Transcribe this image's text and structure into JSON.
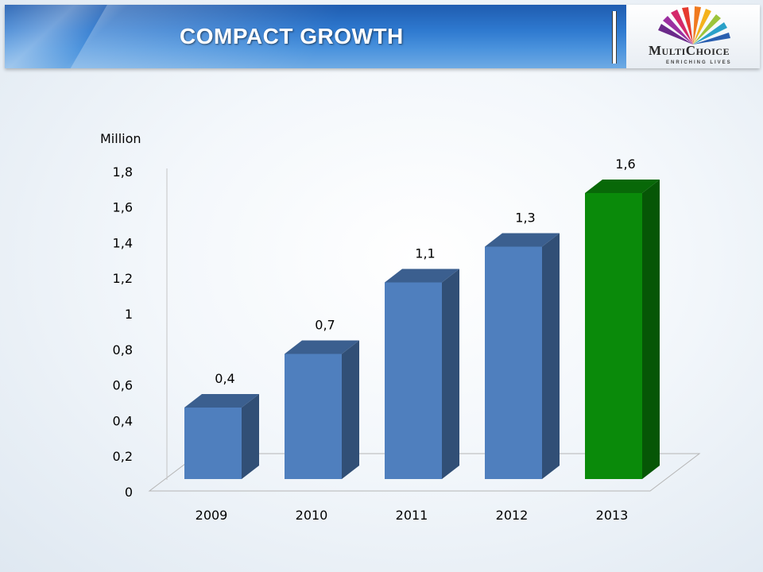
{
  "header": {
    "title": "COMPACT GROWTH",
    "logo_name": "MultiChoice",
    "logo_tagline": "ENRICHING LIVES"
  },
  "colors": {
    "bar": "#4f7fbe",
    "bar_highlight": "#0a8a0a",
    "banner": "#2e79cf"
  },
  "chart_data": {
    "type": "bar",
    "style": "3d-column",
    "ylabel": "Million",
    "xlabel": "",
    "title": "",
    "categories": [
      "2009",
      "2010",
      "2011",
      "2012",
      "2013"
    ],
    "values": [
      0.4,
      0.7,
      1.1,
      1.3,
      1.6
    ],
    "data_labels": [
      "0,4",
      "0,7",
      "1,1",
      "1,3",
      "1,6"
    ],
    "ylim": [
      0,
      1.8
    ],
    "yticks": [
      0,
      0.2,
      0.4,
      0.6,
      0.8,
      1,
      1.2,
      1.4,
      1.6,
      1.8
    ],
    "ytick_labels": [
      "0",
      "0,2",
      "0,4",
      "0,6",
      "0,8",
      "1",
      "1,2",
      "1,4",
      "1,6",
      "1,8"
    ],
    "highlighted_category": "2013",
    "grid": false,
    "legend": "none"
  }
}
